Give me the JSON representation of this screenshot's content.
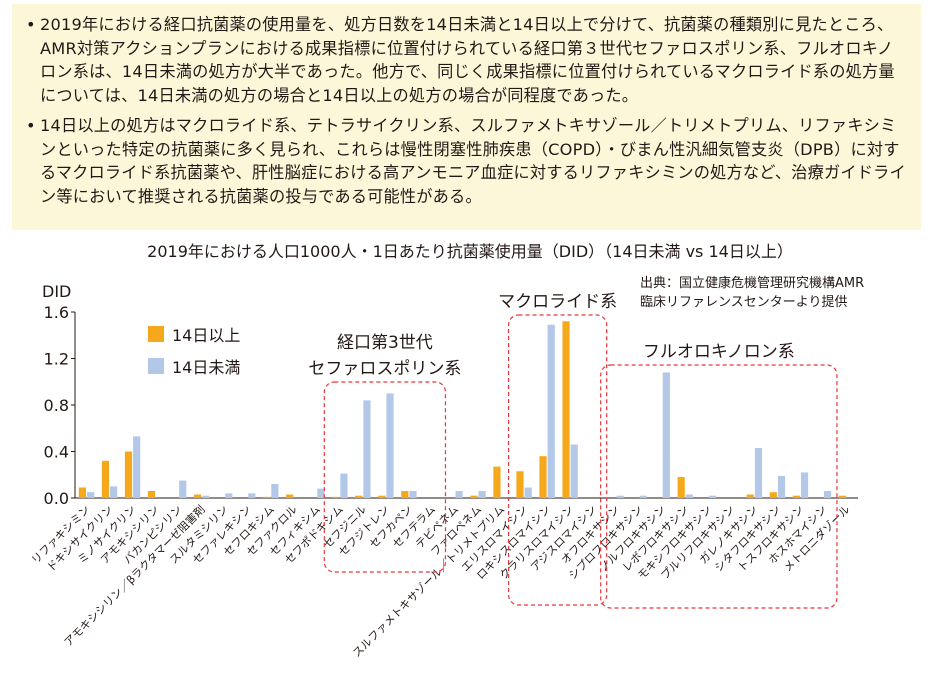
{
  "summary": {
    "bullets": [
      "2019年における経口抗菌薬の使用量を、処方日数を14日未満と14日以上で分けて、抗菌薬の種類別に見たところ、AMR対策アクションプランにおける成果指標に位置付けられている経口第３世代セファロスポリン系、フルオロキノロン系は、14日未満の処方が大半であった。他方で、同じく成果指標に位置付けられているマクロライド系の処方量については、14日未満の処方の場合と14日以上の処方の場合が同程度であった。",
      "14日以上の処方はマクロライド系、テトラサイクリン系、スルファメトキサゾール／トリメトプリム、リファキシミンといった特定の抗菌薬に多く見られ、これらは慢性閉塞性肺疾患（COPD）・びまん性汎細気管支炎（DPB）に対するマクロライド系抗菌薬や、肝性脳症における高アンモニア血症に対するリファキシミンの処方など、治療ガイドライン等において推奨される抗菌薬の投与である可能性がある。"
    ]
  },
  "chart_data": {
    "type": "bar",
    "title": "2019年における人口1000人・1日あたり抗菌薬使用量（DID）（14日未満 vs 14日以上）",
    "source_lines": [
      "出典：国立健康危機管理研究機構AMR",
      "臨床リファレンスセンターより提供"
    ],
    "ylabel": "DID",
    "ylim": [
      0,
      1.6
    ],
    "yticks": [
      "0.0",
      "0.4",
      "0.8",
      "1.2",
      "1.6"
    ],
    "grid": false,
    "legend_position": "upper-left",
    "categories": [
      "リファキシミン",
      "ドキシサイクリン",
      "ミノサイクリン",
      "アモキシシリン",
      "バカンピシリン",
      "アモキシシリン／βラクタマーゼ阻害剤",
      "スルタミシリン",
      "セファレキシン",
      "セフロキシム",
      "セファクロル",
      "セフィキシム",
      "セフポドキシム",
      "セフジニル",
      "セフジトレン",
      "セフカペン",
      "セフテラム",
      "テビペネム",
      "ファロペネム",
      "スルファメトキサゾール／トリメトプリム",
      "エリスロマイシン",
      "ロキシスロマイシン",
      "クラリスロマイシン",
      "アジスロマイシン",
      "オフロキサシン",
      "シプロフロキサシン",
      "ノルフロキサシン",
      "レボフロキサシン",
      "モキシフロキサシン",
      "プルリフロキサシン",
      "ガレノキサシン",
      "シタフロキサシン",
      "トスフロキサシン",
      "ホスホマイシン",
      "メトロニダゾール"
    ],
    "series": [
      {
        "name": "14日以上",
        "color": "#f5a81c",
        "values": [
          0.09,
          0.32,
          0.4,
          0.06,
          0.0,
          0.03,
          0.0,
          0.0,
          0.01,
          0.03,
          0.0,
          0.01,
          0.02,
          0.02,
          0.06,
          0.0,
          0.0,
          0.02,
          0.27,
          0.23,
          0.36,
          1.52,
          0.0,
          0.0,
          0.0,
          0.0,
          0.18,
          0.0,
          0.0,
          0.03,
          0.05,
          0.02,
          0.0,
          0.02
        ]
      },
      {
        "name": "14日未満",
        "color": "#b3c8e8",
        "values": [
          0.05,
          0.1,
          0.53,
          0.0,
          0.15,
          0.02,
          0.04,
          0.04,
          0.12,
          0.0,
          0.08,
          0.21,
          0.84,
          0.9,
          0.06,
          0.0,
          0.06,
          0.06,
          0.0,
          0.09,
          1.49,
          0.46,
          0.0,
          0.02,
          0.02,
          1.08,
          0.03,
          0.02,
          0.0,
          0.43,
          0.19,
          0.22,
          0.06,
          0.0
        ]
      }
    ],
    "group_labels": [
      {
        "lines": [
          "経口第3世代",
          "セファロスポリン系"
        ],
        "first": 11,
        "last": 15
      },
      {
        "lines": [
          "マクロライド系"
        ],
        "first": 19,
        "last": 22
      },
      {
        "lines": [
          "フルオロキノロン系"
        ],
        "first": 23,
        "last": 32
      }
    ],
    "group_box_color": "#e8363c"
  }
}
